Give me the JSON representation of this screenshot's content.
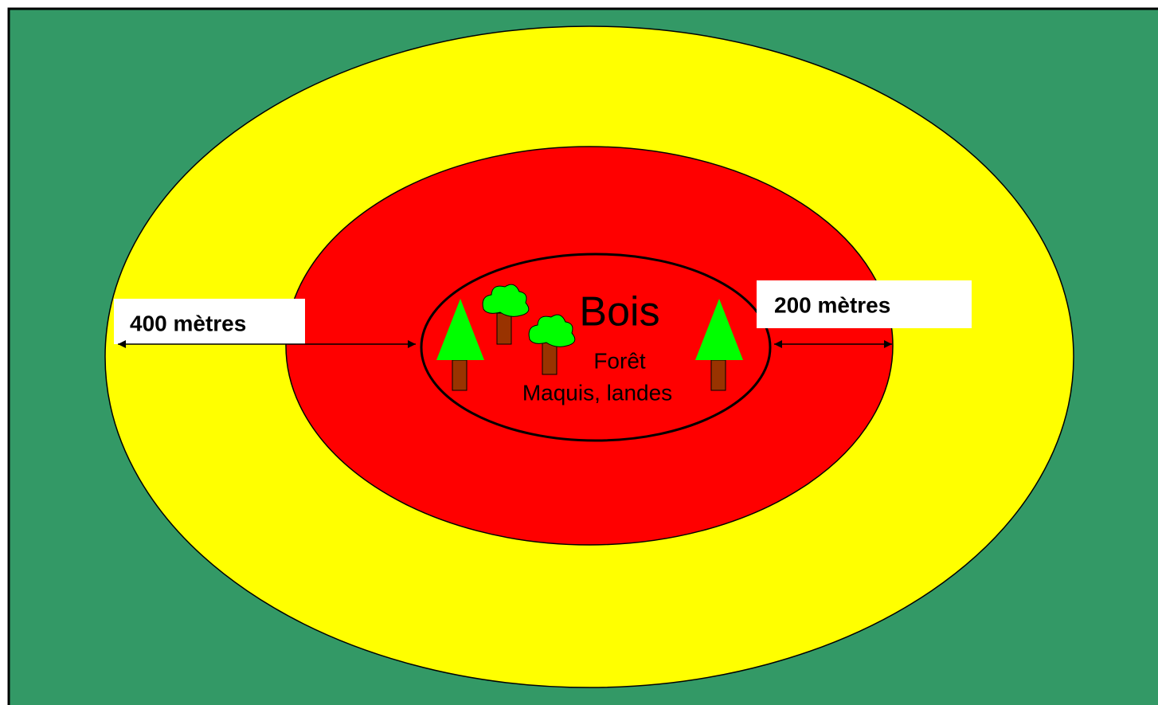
{
  "center": {
    "title": "Bois",
    "lines": [
      "Forêt",
      "Maquis, landes"
    ]
  },
  "distances": [
    {
      "label": "400 mètres"
    },
    {
      "label": "200 mètres"
    }
  ]
}
